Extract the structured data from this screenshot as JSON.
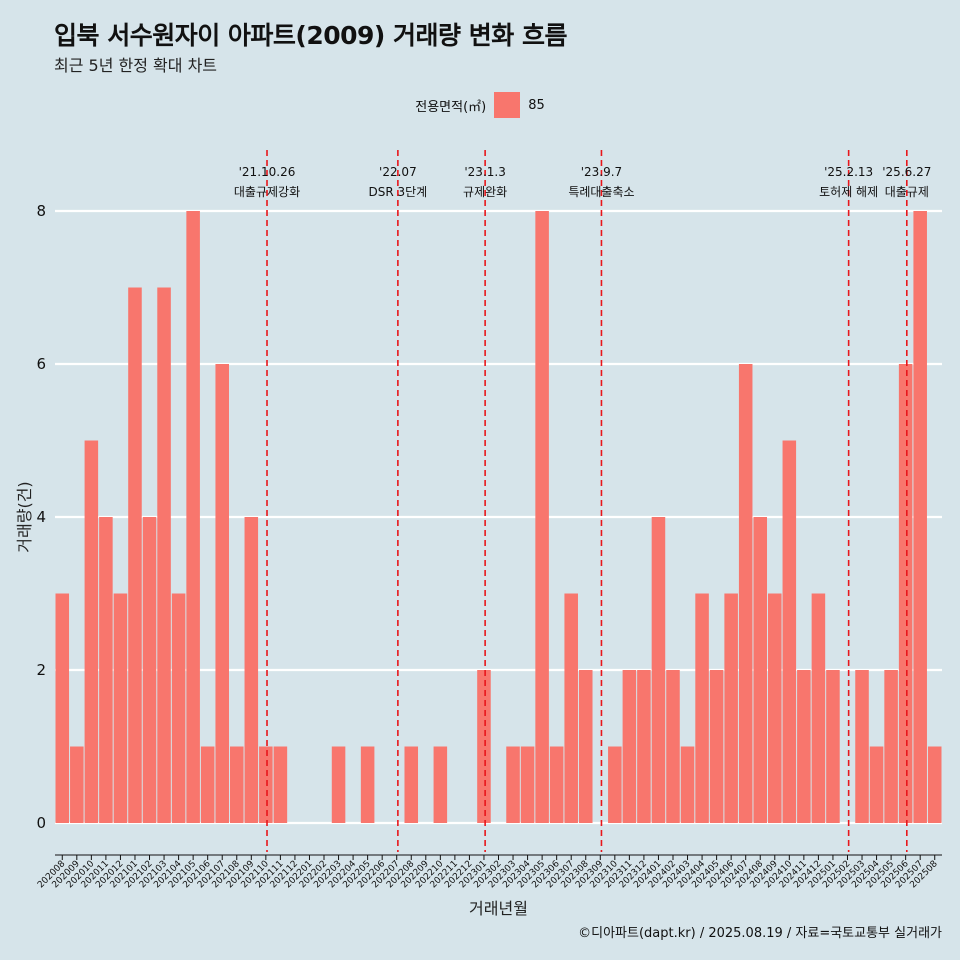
{
  "chart_data": {
    "type": "bar",
    "title": "입북 서수원자이 아파트(2009) 거래량 변화 흐름",
    "subtitle": "최근 5년 한정 확대 차트",
    "xlabel": "거래년월",
    "ylabel": "거래량(건)",
    "legend_title": "전용면적(㎡)",
    "legend_position": "top",
    "series": [
      {
        "name": "85",
        "color": "#f8766d"
      }
    ],
    "categories": [
      "202008",
      "202009",
      "202010",
      "202011",
      "202012",
      "202101",
      "202102",
      "202103",
      "202104",
      "202105",
      "202106",
      "202107",
      "202108",
      "202109",
      "202110",
      "202111",
      "202112",
      "202201",
      "202202",
      "202203",
      "202204",
      "202205",
      "202206",
      "202207",
      "202208",
      "202209",
      "202210",
      "202211",
      "202212",
      "202301",
      "202302",
      "202303",
      "202304",
      "202305",
      "202306",
      "202307",
      "202308",
      "202309",
      "202310",
      "202311",
      "202312",
      "202401",
      "202402",
      "202403",
      "202404",
      "202405",
      "202406",
      "202407",
      "202408",
      "202409",
      "202410",
      "202411",
      "202412",
      "202501",
      "202502",
      "202503",
      "202504",
      "202505",
      "202506",
      "202507",
      "202508"
    ],
    "values": [
      3,
      1,
      5,
      4,
      3,
      7,
      4,
      7,
      3,
      8,
      1,
      6,
      1,
      4,
      1,
      1,
      0,
      0,
      0,
      1,
      0,
      1,
      0,
      0,
      1,
      0,
      1,
      0,
      0,
      2,
      0,
      1,
      1,
      8,
      1,
      3,
      2,
      0,
      1,
      2,
      2,
      4,
      2,
      1,
      3,
      2,
      3,
      6,
      4,
      3,
      5,
      2,
      3,
      2,
      0,
      2,
      1,
      2,
      6,
      8,
      1
    ],
    "y_ticks": [
      0,
      2,
      4,
      6,
      8
    ],
    "ylim": [
      0,
      8
    ],
    "grid": "horizontal",
    "events": [
      {
        "date_label": "'21.10.26",
        "text": "대출규제강화",
        "month": "202110"
      },
      {
        "date_label": "'22.07",
        "text": "DSR 3단계",
        "month": "202207"
      },
      {
        "date_label": "'23.1.3",
        "text": "규제완화",
        "month": "202301"
      },
      {
        "date_label": "'23.9.7",
        "text": "특례대출축소",
        "month": "202309"
      },
      {
        "date_label": "'25.2.13",
        "text": "토허제 해제",
        "month": "202502"
      },
      {
        "date_label": "'25.6.27",
        "text": "대출규제",
        "month": "202506"
      }
    ],
    "caption": "©디아파트(dapt.kr) / 2025.08.19 / 자료=국토교통부 실거래가"
  }
}
